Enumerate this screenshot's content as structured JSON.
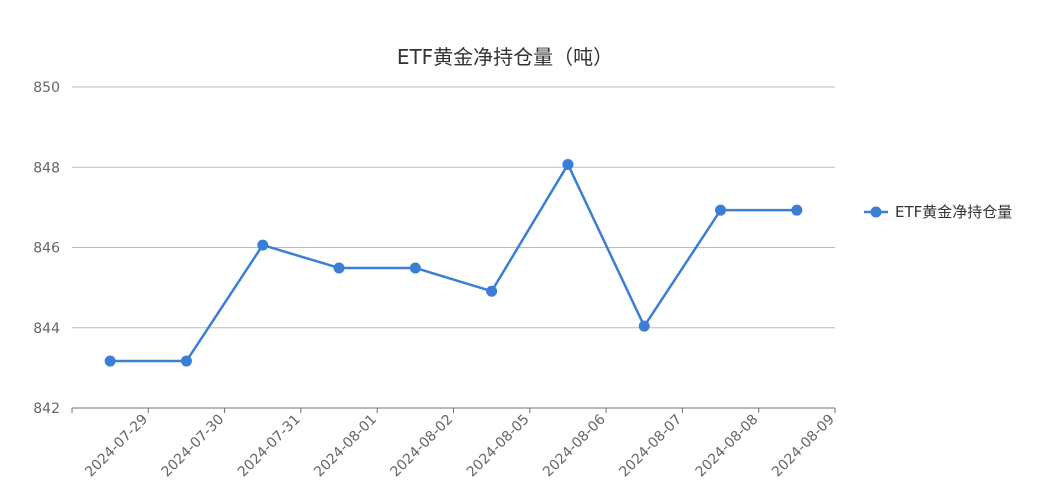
{
  "chart_data": {
    "type": "line",
    "title": "ETF黄金净持仓量（吨）",
    "categories": [
      "2024-07-29",
      "2024-07-30",
      "2024-07-31",
      "2024-08-01",
      "2024-08-02",
      "2024-08-05",
      "2024-08-06",
      "2024-08-07",
      "2024-08-08",
      "2024-08-09"
    ],
    "series": [
      {
        "name": "ETF黄金净持仓量",
        "values": [
          843.17,
          843.17,
          846.06,
          845.49,
          845.49,
          844.91,
          848.07,
          844.04,
          846.93,
          846.93
        ],
        "color": "#3a7fd5"
      }
    ],
    "yticks": [
      842,
      844,
      846,
      848,
      850
    ],
    "ylim": [
      842,
      850
    ],
    "grid": true,
    "legend_position": "right"
  }
}
